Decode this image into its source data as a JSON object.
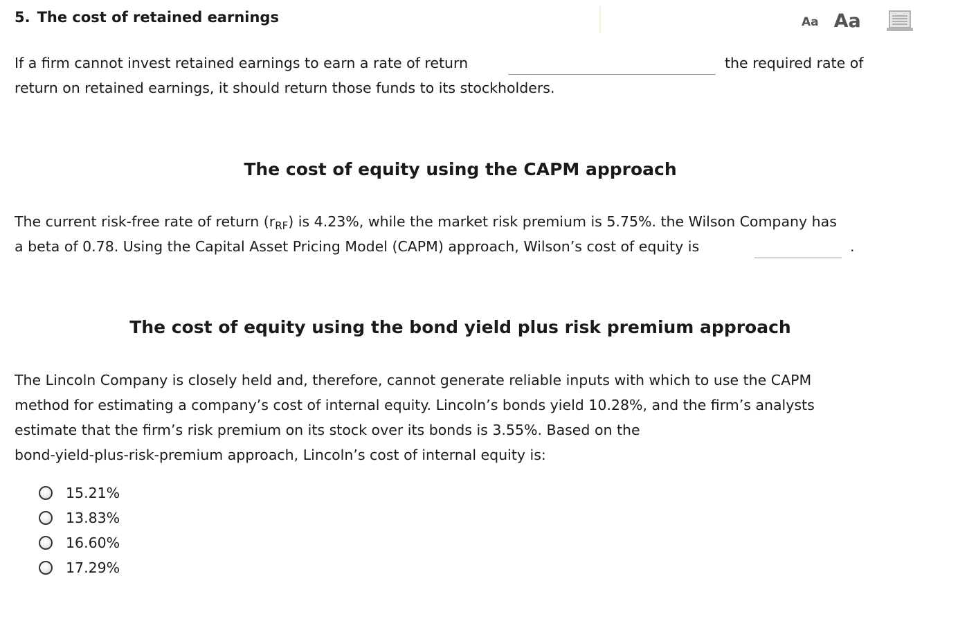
{
  "question": {
    "number": "5.",
    "title": "The cost of retained earnings"
  },
  "toolbar": {
    "font_small": "Aa",
    "font_large": "Aa",
    "print_icon": "print-icon"
  },
  "section1": {
    "line1_before": "If a firm cannot invest retained earnings to earn a rate of return",
    "line1_after": "the required rate of",
    "line2": "return on retained earnings, it should return those funds to its stockholders.",
    "dropdown_value": ""
  },
  "section2": {
    "heading": "The cost of equity using the CAPM approach",
    "line1_a": "The current risk-free rate of return (r",
    "line1_sub": "RF",
    "line1_b": ") is 4.23%, while the market risk premium is 5.75%. the Wilson Company has",
    "line2_a": "a beta of 0.78. Using the Capital Asset Pricing Model (CAPM) approach, Wilson’s cost of equity is",
    "line2_end": ".",
    "dropdown_value": ""
  },
  "section3": {
    "heading": "The cost of equity using the bond yield plus risk premium approach",
    "lines": [
      "The Lincoln Company is closely held and, therefore, cannot generate reliable inputs with which to use the CAPM",
      "method for estimating a company’s cost of internal equity. Lincoln’s bonds yield 10.28%, and the firm’s analysts",
      "estimate that the firm’s risk premium on its stock over its bonds is 3.55%. Based on the",
      "bond-yield-plus-risk-premium approach, Lincoln’s cost of internal equity is:"
    ],
    "options": [
      "15.21%",
      "13.83%",
      "16.60%",
      "17.29%"
    ]
  }
}
